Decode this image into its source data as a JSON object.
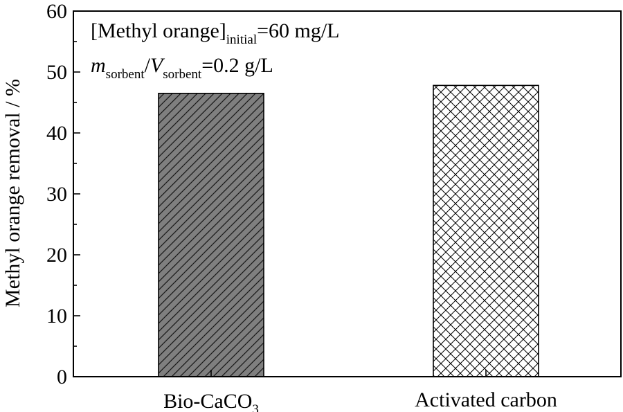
{
  "chart_data": {
    "type": "bar",
    "categories": [
      {
        "main": "Bio-CaCO",
        "sub": "3"
      },
      {
        "main": "Activated carbon",
        "sub": ""
      }
    ],
    "values": [
      46.5,
      47.8
    ],
    "patterns": [
      "diagonal-hatch",
      "crosshatch"
    ],
    "bar_colors": [
      "#7f7f7f",
      "#ffffff"
    ],
    "ylabel": "Methyl orange removal / %",
    "xlabel": "",
    "ylim": [
      0,
      60
    ],
    "yticks": [
      0,
      10,
      20,
      30,
      40,
      50,
      60
    ],
    "yticks_labels": [
      "0",
      "10",
      "20",
      "30",
      "40",
      "50",
      "60"
    ],
    "annotations": {
      "line1": {
        "pre": "[Methyl orange]",
        "sub": "initial",
        "post": "=60 mg/L"
      },
      "line2": {
        "m": "m",
        "sub1": "sorbent",
        "slash": "/",
        "v": "V",
        "sub2": "sorbent",
        "post": "=0.2 g/L"
      }
    },
    "grid": false,
    "legend": "none"
  }
}
